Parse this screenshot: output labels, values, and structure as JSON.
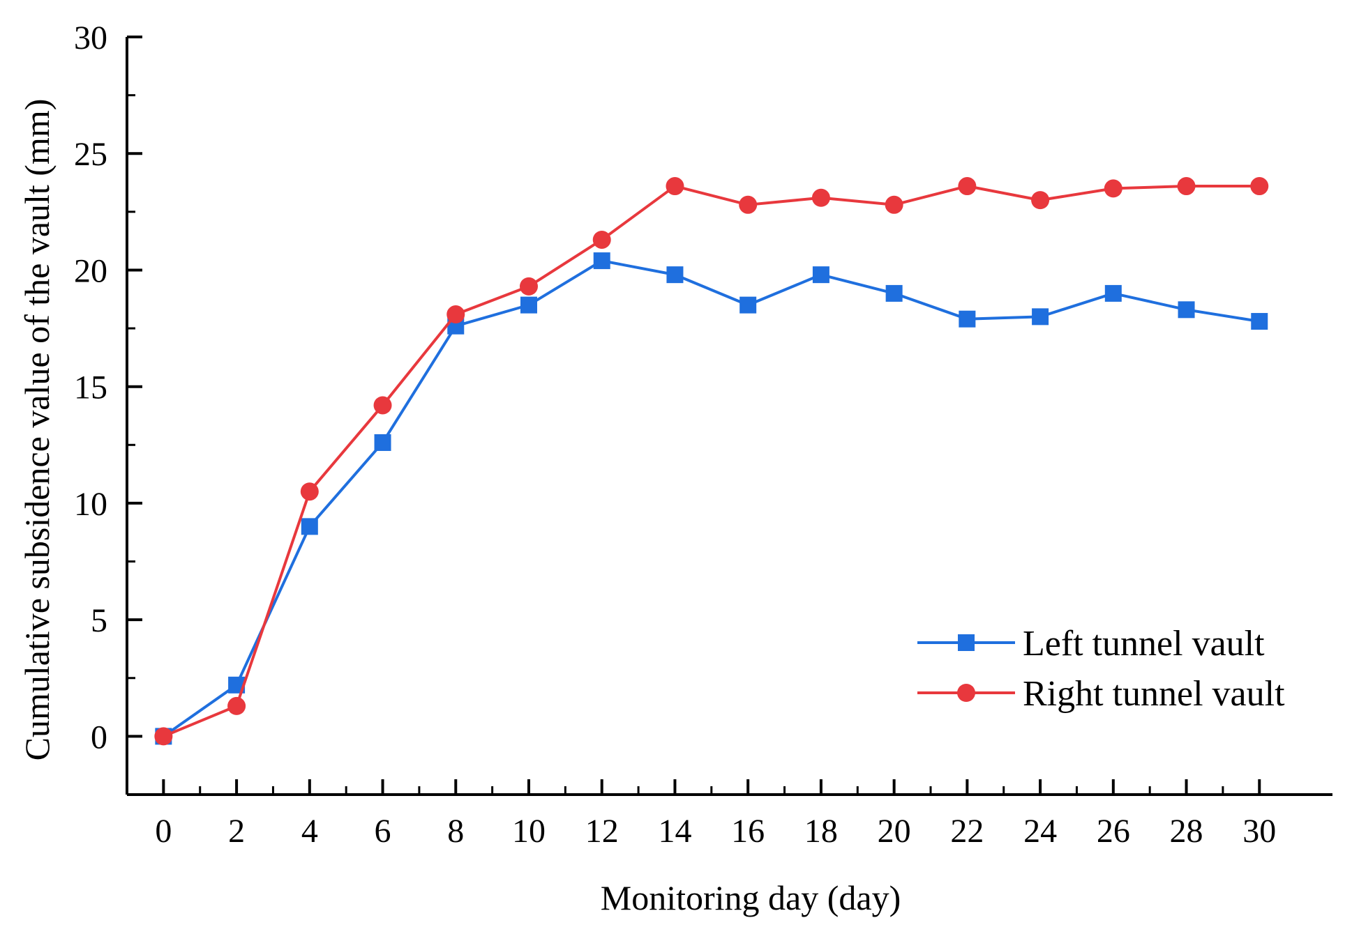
{
  "chart_data": {
    "type": "line",
    "title": "",
    "xlabel": "Monitoring day (day)",
    "ylabel": "Cumulative subsidence value of the vault (mm)",
    "xlim": [
      -1,
      32
    ],
    "ylim": [
      -2.5,
      30
    ],
    "xticks": [
      0,
      2,
      4,
      6,
      8,
      10,
      12,
      14,
      16,
      18,
      20,
      22,
      24,
      26,
      28,
      30
    ],
    "yticks": [
      0,
      5,
      10,
      15,
      20,
      25,
      30
    ],
    "grid": false,
    "legend_position": "bottom-right",
    "x": [
      0,
      2,
      4,
      6,
      8,
      10,
      12,
      14,
      16,
      18,
      20,
      22,
      24,
      26,
      28,
      30
    ],
    "series": [
      {
        "name": "Left tunnel vault",
        "color": "#1f6fde",
        "marker": "square",
        "values": [
          0,
          2.2,
          9.0,
          12.6,
          17.6,
          18.5,
          20.4,
          19.8,
          18.5,
          19.8,
          19.0,
          17.9,
          18.0,
          19.0,
          18.3,
          17.8
        ]
      },
      {
        "name": "Right tunnel vault",
        "color": "#e8383d",
        "marker": "circle",
        "values": [
          0,
          1.3,
          10.5,
          14.2,
          18.1,
          19.3,
          21.3,
          23.6,
          22.8,
          23.1,
          22.8,
          23.6,
          23.0,
          23.5,
          23.6,
          23.6
        ]
      }
    ]
  }
}
